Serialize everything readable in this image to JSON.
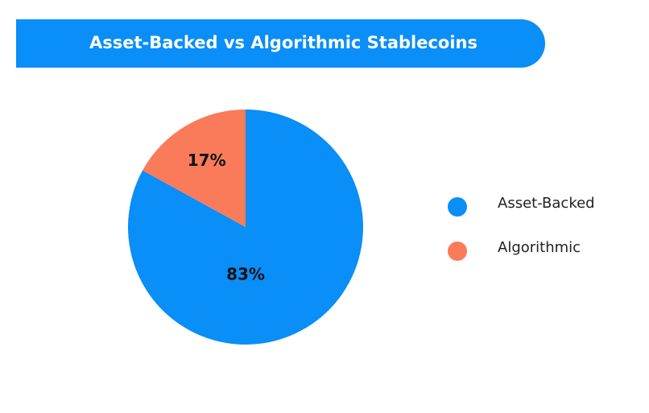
{
  "chart_data": {
    "type": "pie",
    "title": "Asset-Backed vs Algorithmic Stablecoins",
    "categories": [
      "Asset-Backed",
      "Algorithmic"
    ],
    "values": [
      83,
      17
    ],
    "value_labels": [
      "83%",
      "17%"
    ],
    "colors": [
      "#0a8ef7",
      "#f97b5a"
    ],
    "legend": "right"
  }
}
